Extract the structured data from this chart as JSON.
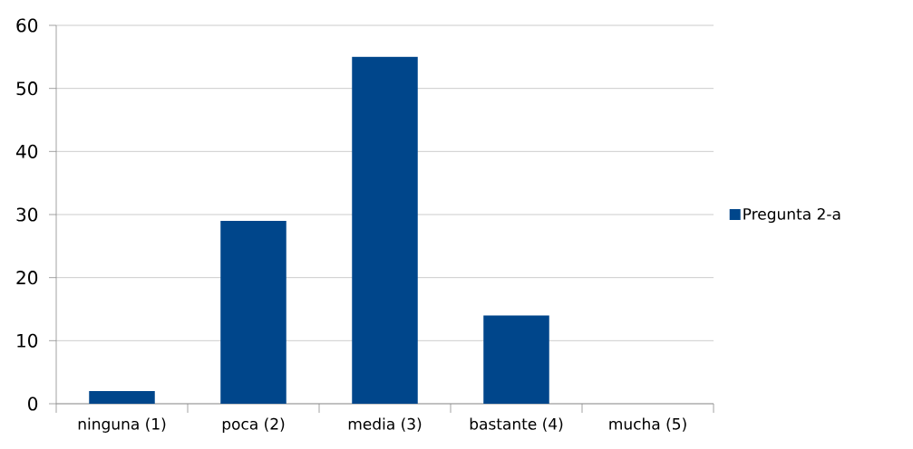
{
  "chart_data": {
    "type": "bar",
    "categories": [
      "ninguna (1)",
      "poca (2)",
      "media (3)",
      "bastante (4)",
      "mucha (5)"
    ],
    "series": [
      {
        "name": "Pregunta 2-a",
        "color": "#00468b",
        "values": [
          2,
          29,
          55,
          14,
          0
        ]
      }
    ],
    "ylim": [
      0,
      60
    ],
    "yticks": [
      0,
      10,
      20,
      30,
      40,
      50,
      60
    ],
    "grid": "y",
    "legend": "right"
  }
}
